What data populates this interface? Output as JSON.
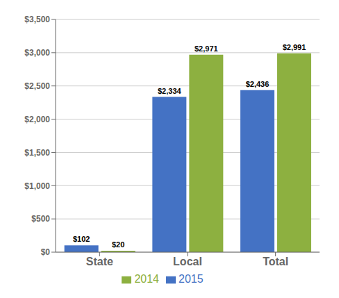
{
  "chart_data": {
    "type": "bar",
    "categories": [
      "State",
      "Local",
      "Total"
    ],
    "series": [
      {
        "name": "2015",
        "color": "#4472C4",
        "values": [
          102,
          2334,
          2436
        ],
        "value_labels": [
          "$102",
          "$2,334",
          "$2,436"
        ]
      },
      {
        "name": "2014",
        "color": "#8DB040",
        "values": [
          20,
          2971,
          2991
        ],
        "value_labels": [
          "$20",
          "$2,971",
          "$2,991"
        ]
      }
    ],
    "ylim": [
      0,
      3500
    ],
    "yticks": [
      {
        "value": 0,
        "label": "$0"
      },
      {
        "value": 500,
        "label": "$500"
      },
      {
        "value": 1000,
        "label": "$1,000"
      },
      {
        "value": 1500,
        "label": "$1,500"
      },
      {
        "value": 2000,
        "label": "$2,000"
      },
      {
        "value": 2500,
        "label": "$2,500"
      },
      {
        "value": 3000,
        "label": "$3,000"
      },
      {
        "value": 3500,
        "label": "$3,500"
      }
    ],
    "grid": true,
    "legend": "bottom",
    "data_labels": true
  }
}
